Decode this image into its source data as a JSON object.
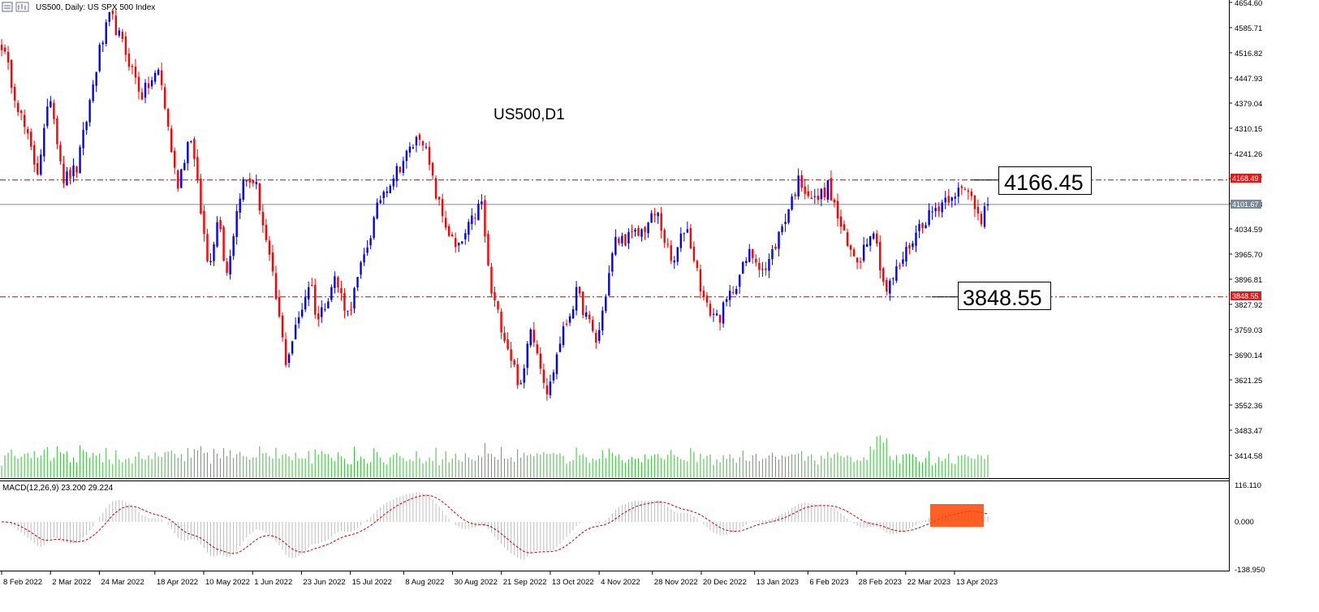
{
  "header": {
    "title": "US500, Daily:  US SPX 500 Index",
    "watermark": "US500,D1"
  },
  "annotations": {
    "resistance_box": "4166.45",
    "support_box": "3848.55",
    "resistance_tag": "4168.49",
    "current_tag": "4101.67",
    "support_tag": "3848.55"
  },
  "price_axis": {
    "labels": [
      "4654.60",
      "4585.71",
      "4516.82",
      "4447.93",
      "4379.04",
      "4310.15",
      "4241.26",
      "4172.37",
      "4103.48",
      "4034.59",
      "3965.70",
      "3896.81",
      "3827.92",
      "3759.03",
      "3690.14",
      "3621.25",
      "3552.36",
      "3483.47",
      "3414.58"
    ]
  },
  "macd_panel": {
    "label": "MACD(12,26,9) 23.200 29.224",
    "axis_labels": [
      "116.110",
      "0.000",
      "-138.950"
    ]
  },
  "time_axis": {
    "labels": [
      "8 Feb 2022",
      "2 Mar 2022",
      "24 Mar 2022",
      "18 Apr 2022",
      "10 May 2022",
      "1 Jun 2022",
      "23 Jun 2022",
      "15 Jul 2022",
      "8 Aug 2022",
      "30 Aug 2022",
      "21 Sep 2022",
      "13 Oct 2022",
      "4 Nov 2022",
      "28 Nov 2022",
      "20 Dec 2022",
      "13 Jan 2023",
      "6 Feb 2023",
      "28 Feb 2023",
      "22 Mar 2023",
      "13 Apr 2023"
    ]
  },
  "colors": {
    "bull": "#0000ff",
    "bear": "#ff0000",
    "volume": "#3dbb3d",
    "level_line": "#cc0000",
    "current_line": "#7a8a99",
    "macd_hist": "#bcbcbc",
    "macd_signal": "#cc0000",
    "highlight": "#ff4400"
  },
  "chart_data": {
    "type": "candlestick",
    "symbol": "US500",
    "timeframe": "Daily",
    "ylim": [
      3380,
      4660
    ],
    "levels": {
      "resistance": 4168.49,
      "support": 3848.55,
      "current": 4101.67
    },
    "pivots": [
      [
        "8 Feb 2022",
        4540
      ],
      [
        "15 Feb 2022",
        4380
      ],
      [
        "24 Feb 2022",
        4190
      ],
      [
        "2 Mar 2022",
        4400
      ],
      [
        "8 Mar 2022",
        4170
      ],
      [
        "14 Mar 2022",
        4200
      ],
      [
        "24 Mar 2022",
        4520
      ],
      [
        "29 Mar 2022",
        4620
      ],
      [
        "6 Apr 2022",
        4500
      ],
      [
        "12 Apr 2022",
        4400
      ],
      [
        "20 Apr 2022",
        4470
      ],
      [
        "28 Apr 2022",
        4150
      ],
      [
        "4 May 2022",
        4300
      ],
      [
        "12 May 2022",
        3930
      ],
      [
        "17 May 2022",
        4080
      ],
      [
        "20 May 2022",
        3900
      ],
      [
        "27 May 2022",
        4160
      ],
      [
        "2 Jun 2022",
        4170
      ],
      [
        "10 Jun 2022",
        3900
      ],
      [
        "16 Jun 2022",
        3670
      ],
      [
        "27 Jun 2022",
        3900
      ],
      [
        "30 Jun 2022",
        3780
      ],
      [
        "8 Jul 2022",
        3900
      ],
      [
        "14 Jul 2022",
        3800
      ],
      [
        "29 Jul 2022",
        4130
      ],
      [
        "16 Aug 2022",
        4300
      ],
      [
        "22 Aug 2022",
        4140
      ],
      [
        "26 Aug 2022",
        4060
      ],
      [
        "1 Sep 2022",
        3970
      ],
      [
        "12 Sep 2022",
        4110
      ],
      [
        "16 Sep 2022",
        3870
      ],
      [
        "30 Sep 2022",
        3590
      ],
      [
        "4 Oct 2022",
        3780
      ],
      [
        "12 Oct 2022",
        3580
      ],
      [
        "17 Oct 2022",
        3720
      ],
      [
        "25 Oct 2022",
        3860
      ],
      [
        "3 Nov 2022",
        3720
      ],
      [
        "11 Nov 2022",
        4000
      ],
      [
        "22 Nov 2022",
        4020
      ],
      [
        "30 Nov 2022",
        4080
      ],
      [
        "7 Dec 2022",
        3930
      ],
      [
        "13 Dec 2022",
        4050
      ],
      [
        "22 Dec 2022",
        3820
      ],
      [
        "28 Dec 2022",
        3790
      ],
      [
        "11 Jan 2023",
        3970
      ],
      [
        "18 Jan 2023",
        3920
      ],
      [
        "2 Feb 2023",
        4170
      ],
      [
        "9 Feb 2023",
        4110
      ],
      [
        "15 Feb 2023",
        4150
      ],
      [
        "24 Feb 2023",
        3980
      ],
      [
        "1 Mar 2023",
        3950
      ],
      [
        "7 Mar 2023",
        4050
      ],
      [
        "13 Mar 2023",
        3860
      ],
      [
        "22 Mar 2023",
        3970
      ],
      [
        "29 Mar 2023",
        4050
      ],
      [
        "6 Apr 2023",
        4100
      ],
      [
        "13 Apr 2023",
        4140
      ],
      [
        "20 Apr 2023",
        4130
      ],
      [
        "25 Apr 2023",
        4060
      ],
      [
        "28 Apr 2023",
        4166.45
      ]
    ]
  }
}
